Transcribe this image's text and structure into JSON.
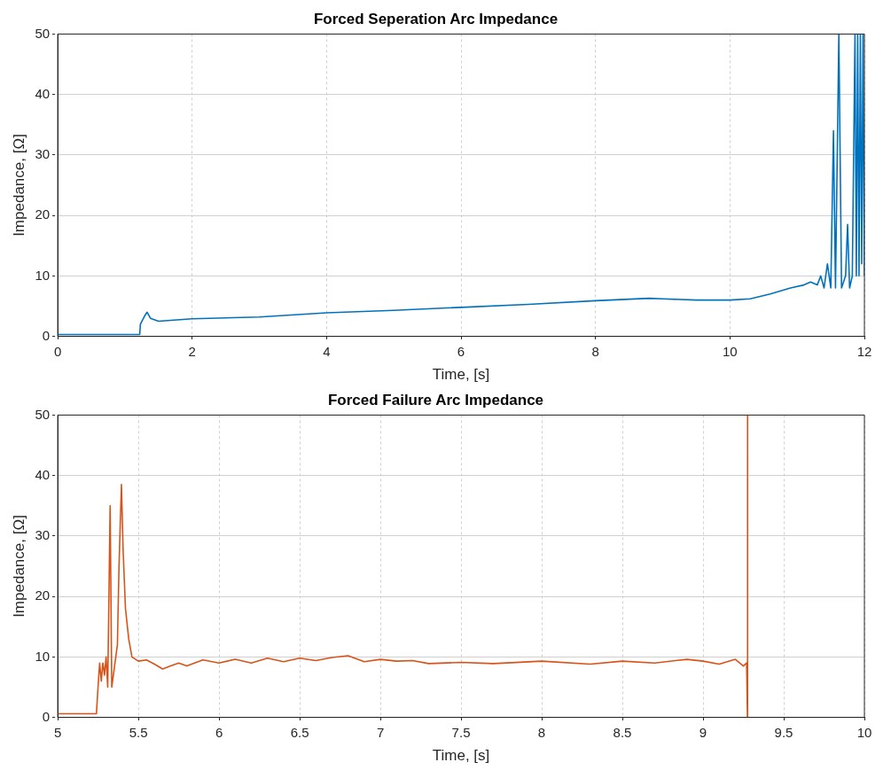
{
  "chart_data": [
    {
      "type": "line",
      "title": "Forced Seperation Arc Impedance",
      "xlabel": "Time, [s]",
      "ylabel": "Impedance, [Ω]",
      "xlim": [
        0,
        12
      ],
      "xticks": [
        0,
        2,
        4,
        6,
        8,
        10,
        12
      ],
      "ylim": [
        0,
        50
      ],
      "yticks": [
        0,
        10,
        20,
        30,
        40,
        50
      ],
      "grid": true,
      "legend": false,
      "marker": "none",
      "line_style": "solid",
      "series": [
        {
          "color": "#0072bd",
          "x": [
            0,
            1.22,
            1.23,
            1.3,
            1.33,
            1.38,
            1.5,
            2,
            3,
            4,
            5,
            6,
            7,
            8,
            8.8,
            9,
            9.5,
            10,
            10.3,
            10.6,
            10.9,
            11.1,
            11.2,
            11.3,
            11.35,
            11.4,
            11.45,
            11.5,
            11.54,
            11.57,
            11.62,
            11.66,
            11.72,
            11.75,
            11.78,
            11.82,
            11.86,
            11.88,
            11.9,
            11.92,
            11.94,
            11.96,
            11.98,
            12
          ],
          "values": [
            0.3,
            0.3,
            2,
            3.5,
            4,
            3,
            2.5,
            2.9,
            3.2,
            3.9,
            4.3,
            4.8,
            5.3,
            5.9,
            6.3,
            6.2,
            6,
            6,
            6.2,
            7,
            8,
            8.5,
            9,
            8.5,
            10,
            8,
            12,
            8,
            34,
            8,
            50,
            8,
            10,
            18.5,
            8,
            10,
            50,
            10,
            50,
            10,
            50,
            12,
            50,
            10
          ]
        }
      ]
    },
    {
      "type": "line",
      "title": "Forced Failure Arc Impedance",
      "xlabel": "Time, [s]",
      "ylabel": "Impedance, [Ω]",
      "xlim": [
        5,
        10
      ],
      "xticks": [
        5,
        {
          "value": 5.5,
          "label": "5.5"
        },
        6,
        {
          "value": 6.5,
          "label": "6.5"
        },
        7,
        {
          "value": 7.5,
          "label": "7.5"
        },
        8,
        {
          "value": 8.5,
          "label": "8.5"
        },
        9,
        {
          "value": 9.5,
          "label": "9.5"
        },
        10
      ],
      "ylim": [
        0,
        50
      ],
      "yticks": [
        0,
        10,
        20,
        30,
        40,
        50
      ],
      "grid": true,
      "legend": false,
      "marker": "none",
      "line_style": "solid",
      "series": [
        {
          "color": "#d95319",
          "x": [
            5,
            5.24,
            5.25,
            5.26,
            5.27,
            5.28,
            5.29,
            5.3,
            5.31,
            5.325,
            5.335,
            5.35,
            5.37,
            5.38,
            5.395,
            5.405,
            5.42,
            5.44,
            5.46,
            5.5,
            5.55,
            5.6,
            5.65,
            5.7,
            5.75,
            5.8,
            5.9,
            6,
            6.1,
            6.2,
            6.3,
            6.4,
            6.5,
            6.6,
            6.7,
            6.8,
            6.9,
            7,
            7.1,
            7.2,
            7.3,
            7.5,
            7.7,
            8,
            8.3,
            8.5,
            8.7,
            8.9,
            9,
            9.1,
            9.2,
            9.25,
            9.27,
            9.275,
            9.276
          ],
          "values": [
            0.6,
            0.6,
            5,
            9,
            6,
            9,
            7,
            10,
            5,
            35,
            5,
            8,
            12,
            25,
            38.5,
            28,
            18,
            13,
            10,
            9.3,
            9.5,
            8.8,
            8,
            8.5,
            9,
            8.5,
            9.5,
            9,
            9.6,
            9,
            9.8,
            9.2,
            9.8,
            9.4,
            9.9,
            10.2,
            9.2,
            9.6,
            9.3,
            9.4,
            8.9,
            9.1,
            8.9,
            9.3,
            8.8,
            9.3,
            9,
            9.6,
            9.3,
            8.8,
            9.6,
            8.5,
            9,
            0,
            50
          ]
        }
      ]
    }
  ]
}
